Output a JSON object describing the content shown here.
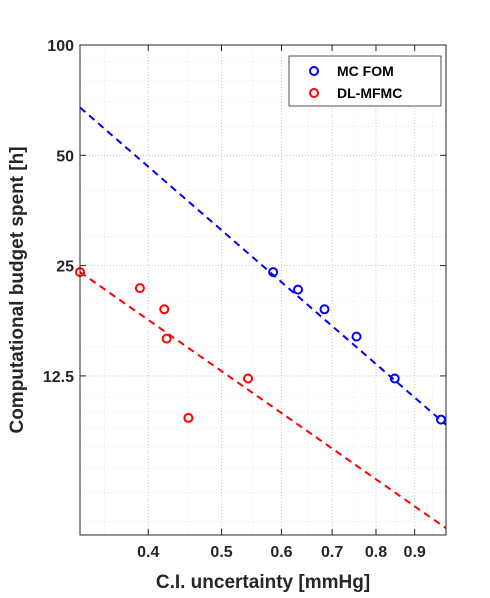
{
  "chart_data": {
    "type": "scatter",
    "title": "",
    "xlabel": "C.I. uncertainty [mmHg]",
    "ylabel": "Computational budget spent [h]",
    "x_scale": "log",
    "y_scale": "log",
    "xlim": [
      0.325,
      0.99
    ],
    "ylim": [
      4.6,
      100
    ],
    "grid": true,
    "legend_position": "top-right",
    "xticks": [
      0.4,
      0.5,
      0.6,
      0.7,
      0.8,
      0.9
    ],
    "xtick_labels": [
      "0.4",
      "0.5",
      "0.6",
      "0.7",
      "0.8",
      "0.9"
    ],
    "yticks": [
      12.5,
      25,
      50,
      100
    ],
    "ytick_labels": [
      "12.5",
      "25",
      "50",
      "100"
    ],
    "series": [
      {
        "name": "MC FOM",
        "color": "#0000ff",
        "marker": "circle",
        "x": [
          0.585,
          0.631,
          0.684,
          0.754,
          0.847,
          0.975
        ],
        "y": [
          24.0,
          21.5,
          19.0,
          16.0,
          12.3,
          9.5
        ],
        "fit": {
          "x": [
            0.325,
            0.99
          ],
          "y": [
            67.5,
            9.2
          ]
        }
      },
      {
        "name": "DL-MFMC",
        "color": "#ff0000",
        "marker": "circle",
        "x": [
          0.325,
          0.39,
          0.42,
          0.423,
          0.452,
          0.542
        ],
        "y": [
          24.0,
          21.7,
          19.0,
          15.8,
          9.6,
          12.3
        ],
        "fit": {
          "x": [
            0.325,
            0.99
          ],
          "y": [
            24.0,
            4.8
          ]
        }
      }
    ]
  }
}
